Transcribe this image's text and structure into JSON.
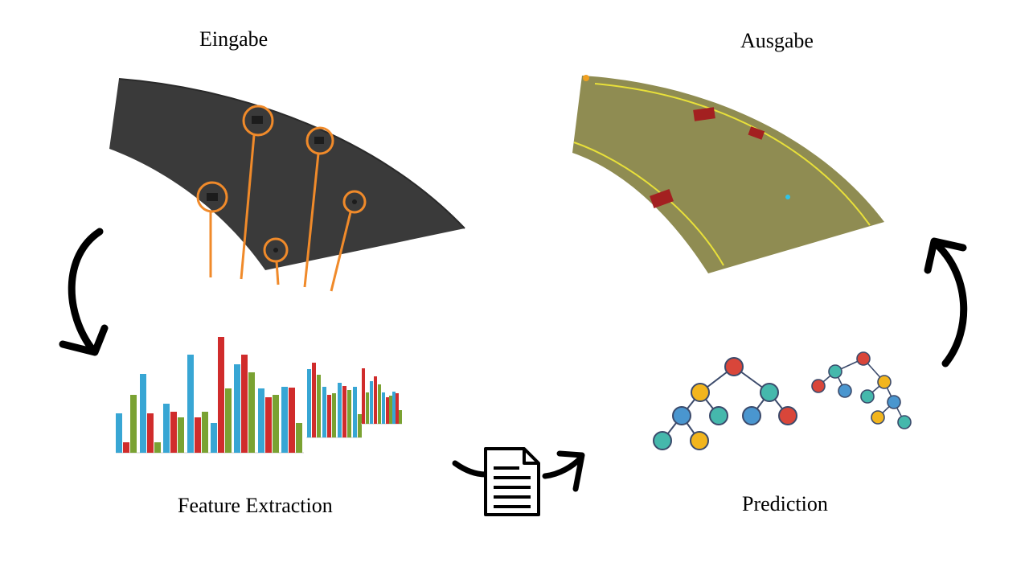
{
  "labels": {
    "input": "Eingabe",
    "output": "Ausgabe",
    "feature_extraction": "Feature Extraction",
    "prediction": "Prediction"
  },
  "colors": {
    "input_part": "#3a3a3a",
    "output_part": "#8f8c52",
    "highlight_orange": "#f08a2a",
    "defect_red": "#a32020",
    "bar_blue": "#38a6d4",
    "bar_red": "#d02c2c",
    "bar_green": "#7aa232",
    "node_red": "#d9463a",
    "node_yellow": "#f2b51d",
    "node_teal": "#45b8ac",
    "node_blue": "#4a96cf"
  },
  "icons": [
    "curved-arrow-down-icon",
    "document-icon",
    "curved-arrow-up-icon"
  ]
}
